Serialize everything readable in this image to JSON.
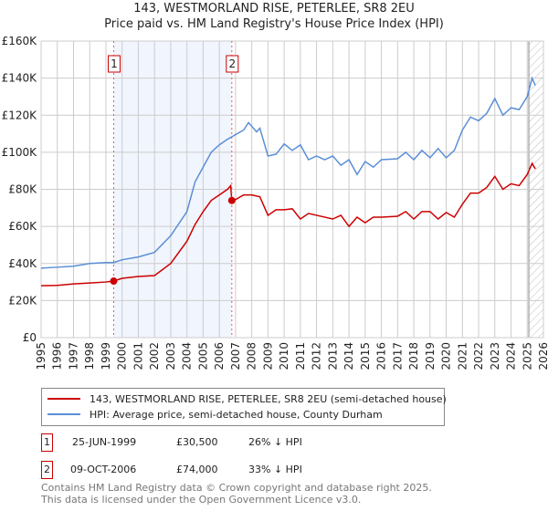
{
  "chart_data": {
    "type": "line",
    "title": "143, WESTMORLAND RISE, PETERLEE, SR8 2EU",
    "subtitle": "Price paid vs. HM Land Registry's House Price Index (HPI)",
    "xlim": [
      1995,
      2026
    ],
    "ylim": [
      0,
      160000
    ],
    "x_ticks": [
      "1995",
      "1996",
      "1997",
      "1998",
      "1999",
      "2000",
      "2001",
      "2002",
      "2003",
      "2004",
      "2005",
      "2006",
      "2007",
      "2008",
      "2009",
      "2010",
      "2011",
      "2012",
      "2013",
      "2014",
      "2015",
      "2016",
      "2017",
      "2018",
      "2019",
      "2020",
      "2021",
      "2022",
      "2023",
      "2024",
      "2025",
      "2026"
    ],
    "y_ticks": [
      {
        "v": 0,
        "label": "£0"
      },
      {
        "v": 20000,
        "label": "£20K"
      },
      {
        "v": 40000,
        "label": "£40K"
      },
      {
        "v": 60000,
        "label": "£60K"
      },
      {
        "v": 80000,
        "label": "£80K"
      },
      {
        "v": 100000,
        "label": "£100K"
      },
      {
        "v": 120000,
        "label": "£120K"
      },
      {
        "v": 140000,
        "label": "£140K"
      },
      {
        "v": 160000,
        "label": "£160K"
      }
    ],
    "grid": true,
    "shaded_period": [
      1999.48,
      2006.77
    ],
    "forecast_hatch_from": 2025.1,
    "series": [
      {
        "name": "143, WESTMORLAND RISE, PETERLEE, SR8 2EU (semi-detached house)",
        "color": "#cc0000",
        "points": [
          [
            1995,
            28000
          ],
          [
            1996,
            28200
          ],
          [
            1997,
            29000
          ],
          [
            1998,
            29500
          ],
          [
            1999,
            30000
          ],
          [
            1999.48,
            30500
          ],
          [
            2000,
            32000
          ],
          [
            2001,
            33000
          ],
          [
            2002,
            33500
          ],
          [
            2003,
            40000
          ],
          [
            2004,
            52000
          ],
          [
            2004.5,
            61000
          ],
          [
            2005,
            68000
          ],
          [
            2005.5,
            74000
          ],
          [
            2006,
            77000
          ],
          [
            2006.5,
            80000
          ],
          [
            2006.7,
            82000
          ],
          [
            2006.77,
            74000
          ],
          [
            2007,
            74500
          ],
          [
            2007.5,
            77000
          ],
          [
            2008,
            77000
          ],
          [
            2008.5,
            76000
          ],
          [
            2009,
            66000
          ],
          [
            2009.5,
            69000
          ],
          [
            2010,
            69000
          ],
          [
            2010.5,
            69500
          ],
          [
            2011,
            64000
          ],
          [
            2011.5,
            67000
          ],
          [
            2012,
            66000
          ],
          [
            2013,
            64000
          ],
          [
            2013.5,
            66000
          ],
          [
            2014,
            60000
          ],
          [
            2014.5,
            65000
          ],
          [
            2015,
            62000
          ],
          [
            2015.5,
            65000
          ],
          [
            2016,
            65000
          ],
          [
            2017,
            65500
          ],
          [
            2017.5,
            68000
          ],
          [
            2018,
            64000
          ],
          [
            2018.5,
            68000
          ],
          [
            2019,
            68000
          ],
          [
            2019.5,
            64000
          ],
          [
            2020,
            67500
          ],
          [
            2020.5,
            65000
          ],
          [
            2021,
            72000
          ],
          [
            2021.5,
            78000
          ],
          [
            2022,
            78000
          ],
          [
            2022.5,
            81000
          ],
          [
            2023,
            87000
          ],
          [
            2023.5,
            80000
          ],
          [
            2024,
            83000
          ],
          [
            2024.5,
            82000
          ],
          [
            2025,
            88000
          ],
          [
            2025.3,
            94000
          ],
          [
            2025.5,
            91000
          ]
        ]
      },
      {
        "name": "HPI: Average price, semi-detached house, County Durham",
        "color": "#5b8fd6",
        "points": [
          [
            1995,
            37500
          ],
          [
            1996,
            38000
          ],
          [
            1997,
            38500
          ],
          [
            1998,
            40000
          ],
          [
            1999,
            40500
          ],
          [
            1999.48,
            40500
          ],
          [
            2000,
            42000
          ],
          [
            2001,
            43500
          ],
          [
            2002,
            46000
          ],
          [
            2003,
            55000
          ],
          [
            2004,
            68000
          ],
          [
            2004.5,
            84000
          ],
          [
            2005,
            92000
          ],
          [
            2005.5,
            100000
          ],
          [
            2006,
            104000
          ],
          [
            2006.5,
            107000
          ],
          [
            2007,
            109500
          ],
          [
            2007.5,
            112000
          ],
          [
            2007.8,
            116000
          ],
          [
            2008.3,
            111000
          ],
          [
            2008.5,
            113000
          ],
          [
            2009,
            98000
          ],
          [
            2009.5,
            99000
          ],
          [
            2010,
            104500
          ],
          [
            2010.5,
            101000
          ],
          [
            2011,
            104000
          ],
          [
            2011.5,
            96000
          ],
          [
            2012,
            98000
          ],
          [
            2012.5,
            96000
          ],
          [
            2013,
            98000
          ],
          [
            2013.5,
            93000
          ],
          [
            2014,
            96000
          ],
          [
            2014.5,
            88000
          ],
          [
            2015,
            95000
          ],
          [
            2015.5,
            92000
          ],
          [
            2016,
            96000
          ],
          [
            2017,
            96500
          ],
          [
            2017.5,
            100000
          ],
          [
            2018,
            96000
          ],
          [
            2018.5,
            101000
          ],
          [
            2019,
            97000
          ],
          [
            2019.5,
            102000
          ],
          [
            2020,
            97000
          ],
          [
            2020.5,
            101000
          ],
          [
            2021,
            112000
          ],
          [
            2021.5,
            119000
          ],
          [
            2022,
            117000
          ],
          [
            2022.5,
            121000
          ],
          [
            2023,
            129000
          ],
          [
            2023.5,
            120000
          ],
          [
            2024,
            124000
          ],
          [
            2024.5,
            123000
          ],
          [
            2025,
            130000
          ],
          [
            2025.3,
            140000
          ],
          [
            2025.5,
            136000
          ]
        ]
      }
    ],
    "sales": [
      {
        "n": "1",
        "year": 1999.48,
        "price": 30500,
        "date": "25-JUN-1999",
        "price_label": "£30,500",
        "hpi_diff": "26% ↓ HPI"
      },
      {
        "n": "2",
        "year": 2006.77,
        "price": 74000,
        "date": "09-OCT-2006",
        "price_label": "£74,000",
        "hpi_diff": "33% ↓ HPI"
      }
    ]
  },
  "footer": {
    "line1": "Contains HM Land Registry data © Crown copyright and database right 2025.",
    "line2": "This data is licensed under the Open Government Licence v3.0."
  }
}
